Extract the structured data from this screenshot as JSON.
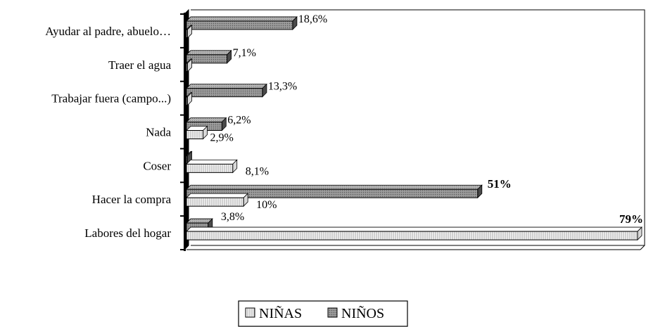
{
  "chart_data": {
    "type": "bar",
    "orientation": "horizontal",
    "three_d": true,
    "categories": [
      "Ayudar al padre, abuelo…",
      "Traer el agua",
      "Trabajar fuera (campo...)",
      "Nada",
      "Coser",
      "Hacer la compra",
      "Labores del hogar"
    ],
    "series": [
      {
        "name": "NIÑAS",
        "color": "#f2f2f2",
        "pattern": "vertical-lines",
        "values": [
          0,
          0,
          0,
          2.9,
          8.1,
          10,
          79
        ],
        "labels": [
          "",
          "",
          "",
          "2,9%",
          "8,1%",
          "10%",
          "79%"
        ]
      },
      {
        "name": "NIÑOS",
        "color": "#8c8c8c",
        "pattern": "dots",
        "values": [
          18.6,
          7.1,
          13.3,
          6.2,
          0,
          51,
          3.8
        ],
        "labels": [
          "18,6%",
          "7,1%",
          "13,3%",
          "6,2%",
          "",
          "51%",
          "3,8%"
        ]
      }
    ],
    "bold_labels": [
      "51%",
      "79%"
    ],
    "xlim": [
      0,
      79
    ],
    "grid": false,
    "legend_position": "bottom-center",
    "title": "",
    "xlabel": "",
    "ylabel": ""
  },
  "legend": {
    "items": [
      "NIÑAS",
      "NIÑOS"
    ]
  }
}
